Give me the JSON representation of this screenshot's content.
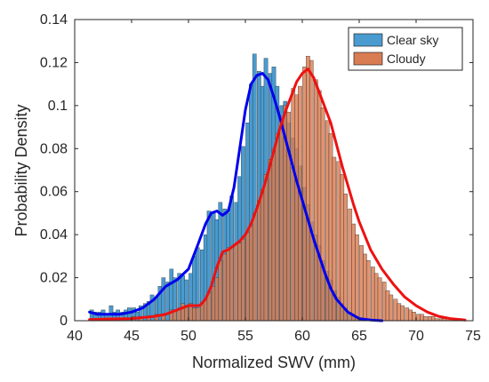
{
  "chart_data": {
    "type": "histogram",
    "xlabel": "Normalized SWV (mm)",
    "ylabel": "Probability Density",
    "xlim": [
      40,
      75
    ],
    "ylim": [
      0,
      0.14
    ],
    "xticks": [
      40,
      45,
      50,
      55,
      60,
      65,
      70,
      75
    ],
    "yticks": [
      0,
      0.02,
      0.04,
      0.06,
      0.08,
      0.1,
      0.12,
      0.14
    ],
    "ytick_labels": [
      "0",
      "0.02",
      "0.04",
      "0.06",
      "0.08",
      "0.1",
      "0.12",
      "0.14"
    ],
    "grid": false,
    "legend_position": "top-right",
    "series": [
      {
        "name": "Clear sky",
        "bar_color": "#4a9bcf",
        "line_color": "#0000ee",
        "bin_width": 0.333,
        "bins": [
          [
            41.5,
            0.005
          ],
          [
            41.8,
            0.004
          ],
          [
            42.2,
            0.004
          ],
          [
            42.5,
            0.005
          ],
          [
            42.8,
            0.003
          ],
          [
            43.2,
            0.007
          ],
          [
            43.5,
            0.004
          ],
          [
            43.8,
            0.005
          ],
          [
            44.2,
            0.004
          ],
          [
            44.5,
            0.005
          ],
          [
            44.8,
            0.006
          ],
          [
            45.2,
            0.006
          ],
          [
            45.5,
            0.004
          ],
          [
            45.8,
            0.007
          ],
          [
            46.2,
            0.008
          ],
          [
            46.5,
            0.009
          ],
          [
            46.8,
            0.012
          ],
          [
            47.2,
            0.011
          ],
          [
            47.5,
            0.016
          ],
          [
            47.8,
            0.02
          ],
          [
            48.2,
            0.018
          ],
          [
            48.5,
            0.024
          ],
          [
            48.8,
            0.02
          ],
          [
            49.2,
            0.022
          ],
          [
            49.5,
            0.021
          ],
          [
            49.8,
            0.019
          ],
          [
            50.2,
            0.022
          ],
          [
            50.5,
            0.03
          ],
          [
            50.8,
            0.034
          ],
          [
            51.2,
            0.033
          ],
          [
            51.5,
            0.04
          ],
          [
            51.8,
            0.051
          ],
          [
            52.2,
            0.05
          ],
          [
            52.5,
            0.047
          ],
          [
            52.8,
            0.055
          ],
          [
            53.2,
            0.052
          ],
          [
            53.5,
            0.05
          ],
          [
            53.8,
            0.058
          ],
          [
            54.2,
            0.055
          ],
          [
            54.5,
            0.067
          ],
          [
            54.8,
            0.081
          ],
          [
            55.2,
            0.092
          ],
          [
            55.5,
            0.11
          ],
          [
            55.8,
            0.124
          ],
          [
            56.2,
            0.116
          ],
          [
            56.5,
            0.109
          ],
          [
            56.8,
            0.122
          ],
          [
            57.2,
            0.115
          ],
          [
            57.5,
            0.118
          ],
          [
            57.8,
            0.109
          ],
          [
            58.2,
            0.1
          ],
          [
            58.5,
            0.102
          ],
          [
            58.8,
            0.092
          ],
          [
            59.2,
            0.085
          ],
          [
            59.5,
            0.08
          ],
          [
            59.8,
            0.072
          ],
          [
            60.2,
            0.062
          ],
          [
            60.5,
            0.054
          ],
          [
            60.8,
            0.046
          ],
          [
            61.2,
            0.04
          ],
          [
            61.5,
            0.035
          ],
          [
            61.8,
            0.028
          ],
          [
            62.2,
            0.023
          ],
          [
            62.5,
            0.019
          ],
          [
            62.8,
            0.014
          ],
          [
            63.2,
            0.011
          ],
          [
            63.5,
            0.008
          ],
          [
            63.8,
            0.006
          ],
          [
            64.2,
            0.004
          ],
          [
            64.5,
            0.003
          ],
          [
            64.8,
            0.002
          ],
          [
            65.2,
            0.001
          ]
        ],
        "density_x": [
          41.3,
          42,
          43,
          44,
          45,
          46,
          47,
          48,
          49,
          50,
          50.8,
          51.5,
          52,
          52.5,
          53,
          53.5,
          54,
          54.5,
          55,
          55.5,
          56,
          56.5,
          57,
          57.5,
          58,
          58.5,
          59,
          59.5,
          60,
          60.5,
          61,
          61.5,
          62,
          62.5,
          63,
          64,
          65,
          66,
          67
        ],
        "density_y": [
          0.004,
          0.003,
          0.003,
          0.003,
          0.004,
          0.006,
          0.01,
          0.016,
          0.019,
          0.024,
          0.035,
          0.045,
          0.05,
          0.051,
          0.049,
          0.051,
          0.062,
          0.08,
          0.098,
          0.11,
          0.114,
          0.115,
          0.112,
          0.104,
          0.095,
          0.085,
          0.075,
          0.065,
          0.056,
          0.047,
          0.038,
          0.03,
          0.022,
          0.015,
          0.01,
          0.004,
          0.001,
          0.0003,
          0
        ]
      },
      {
        "name": "Cloudy",
        "bar_color": "#d97c52",
        "line_color": "#ee1111",
        "bin_width": 0.333,
        "bins": [
          [
            41.5,
            0.001
          ],
          [
            42.5,
            0.001
          ],
          [
            43.5,
            0.001
          ],
          [
            44.5,
            0.001
          ],
          [
            45.2,
            0.002
          ],
          [
            45.8,
            0.002
          ],
          [
            46.5,
            0.002
          ],
          [
            47.2,
            0.003
          ],
          [
            47.8,
            0.003
          ],
          [
            48.5,
            0.005
          ],
          [
            48.8,
            0.005
          ],
          [
            49.2,
            0.006
          ],
          [
            49.5,
            0.008
          ],
          [
            49.8,
            0.007
          ],
          [
            50.2,
            0.008
          ],
          [
            50.5,
            0.006
          ],
          [
            50.8,
            0.006
          ],
          [
            51.2,
            0.008
          ],
          [
            51.5,
            0.01
          ],
          [
            51.8,
            0.013
          ],
          [
            52.2,
            0.016
          ],
          [
            52.5,
            0.02
          ],
          [
            52.8,
            0.028
          ],
          [
            53.2,
            0.031
          ],
          [
            53.5,
            0.034
          ],
          [
            53.8,
            0.034
          ],
          [
            54.2,
            0.036
          ],
          [
            54.5,
            0.036
          ],
          [
            54.8,
            0.038
          ],
          [
            55.2,
            0.041
          ],
          [
            55.5,
            0.044
          ],
          [
            55.8,
            0.05
          ],
          [
            56.2,
            0.056
          ],
          [
            56.5,
            0.061
          ],
          [
            56.8,
            0.068
          ],
          [
            57.2,
            0.075
          ],
          [
            57.5,
            0.08
          ],
          [
            57.8,
            0.087
          ],
          [
            58.2,
            0.095
          ],
          [
            58.5,
            0.1
          ],
          [
            58.8,
            0.097
          ],
          [
            59.2,
            0.108
          ],
          [
            59.5,
            0.105
          ],
          [
            59.8,
            0.109
          ],
          [
            60.2,
            0.118
          ],
          [
            60.5,
            0.123
          ],
          [
            60.8,
            0.121
          ],
          [
            61.2,
            0.112
          ],
          [
            61.5,
            0.107
          ],
          [
            61.8,
            0.099
          ],
          [
            62.2,
            0.093
          ],
          [
            62.5,
            0.087
          ],
          [
            62.8,
            0.076
          ],
          [
            63.2,
            0.074
          ],
          [
            63.5,
            0.068
          ],
          [
            63.8,
            0.059
          ],
          [
            64.2,
            0.052
          ],
          [
            64.5,
            0.045
          ],
          [
            64.8,
            0.04
          ],
          [
            65.2,
            0.035
          ],
          [
            65.5,
            0.031
          ],
          [
            65.8,
            0.028
          ],
          [
            66.2,
            0.025
          ],
          [
            66.5,
            0.022
          ],
          [
            66.8,
            0.02
          ],
          [
            67.2,
            0.018
          ],
          [
            67.5,
            0.014
          ],
          [
            67.8,
            0.012
          ],
          [
            68.2,
            0.01
          ],
          [
            68.5,
            0.008
          ],
          [
            68.8,
            0.007
          ],
          [
            69.2,
            0.006
          ],
          [
            69.5,
            0.005
          ],
          [
            69.8,
            0.004
          ],
          [
            70.2,
            0.003
          ],
          [
            70.5,
            0.003
          ],
          [
            70.8,
            0.002
          ],
          [
            71.2,
            0.002
          ],
          [
            71.5,
            0.002
          ],
          [
            71.8,
            0.001
          ],
          [
            72.2,
            0.001
          ],
          [
            72.5,
            0.001
          ],
          [
            72.8,
            0.001
          ],
          [
            73.2,
            0.001
          ],
          [
            73.5,
            0.001
          ],
          [
            73.8,
            0.001
          ]
        ],
        "density_x": [
          41.3,
          43,
          45,
          47,
          48,
          49,
          50,
          51,
          51.5,
          52,
          52.5,
          53,
          53.5,
          54,
          54.5,
          55,
          55.5,
          56,
          56.5,
          57,
          57.5,
          58,
          58.5,
          59,
          59.5,
          60,
          60.5,
          61,
          61.5,
          62,
          62.5,
          63,
          63.5,
          64,
          64.5,
          65,
          66,
          67,
          68,
          69,
          70,
          71,
          72,
          73,
          74.3
        ],
        "density_y": [
          0.0005,
          0.0008,
          0.001,
          0.002,
          0.003,
          0.005,
          0.007,
          0.007,
          0.01,
          0.016,
          0.025,
          0.032,
          0.033,
          0.035,
          0.037,
          0.04,
          0.045,
          0.052,
          0.06,
          0.069,
          0.079,
          0.089,
          0.097,
          0.104,
          0.111,
          0.115,
          0.117,
          0.113,
          0.106,
          0.099,
          0.092,
          0.082,
          0.072,
          0.063,
          0.054,
          0.046,
          0.033,
          0.024,
          0.017,
          0.011,
          0.007,
          0.004,
          0.002,
          0.001,
          0.0003
        ]
      }
    ]
  }
}
